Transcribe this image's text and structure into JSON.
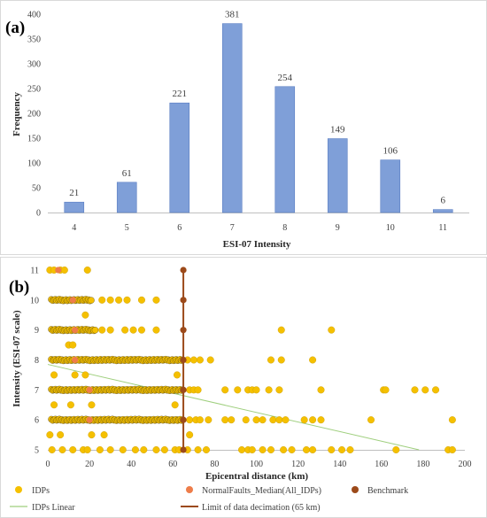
{
  "chart_data": [
    {
      "panel_label": "(a)",
      "type": "bar",
      "categories": [
        "4",
        "5",
        "6",
        "7",
        "8",
        "9",
        "10",
        "11"
      ],
      "values": [
        21,
        61,
        221,
        381,
        254,
        149,
        106,
        6
      ],
      "xlabel": "ESI-07 Intensity",
      "ylabel": "Frequency",
      "ylim": [
        0,
        400
      ],
      "yticks": [
        0,
        50,
        100,
        150,
        200,
        250,
        300,
        350,
        400
      ],
      "grid": false,
      "bar_color": "#7f9fd8",
      "data_labels": true
    },
    {
      "panel_label": "(b)",
      "type": "scatter",
      "xlabel": "Epicentral distance (km)",
      "ylabel": "Intensity  (ESI-07 scale)",
      "xlim": [
        0,
        200
      ],
      "ylim": [
        5,
        11
      ],
      "xticks": [
        0,
        20,
        40,
        60,
        80,
        100,
        120,
        140,
        160,
        180,
        200
      ],
      "yticks": [
        5,
        6,
        7,
        8,
        9,
        10,
        11
      ],
      "grid": false,
      "legend_position": "bottom",
      "series": [
        {
          "name": "IDPs",
          "marker": "circle",
          "color": "#f5c000",
          "dense_bands": [
            {
              "y": 6,
              "x_range": [
                0,
                66
              ]
            },
            {
              "y": 7,
              "x_range": [
                0,
                66
              ]
            },
            {
              "y": 8,
              "x_range": [
                0,
                66
              ]
            },
            {
              "y": 9,
              "x_range": [
                0,
                24
              ]
            },
            {
              "y": 10,
              "x_range": [
                0,
                22
              ]
            }
          ],
          "points": [
            [
              93,
              5
            ],
            [
              96,
              5
            ],
            [
              98,
              5
            ],
            [
              103,
              5
            ],
            [
              107,
              5
            ],
            [
              113,
              5
            ],
            [
              117,
              5
            ],
            [
              124,
              5
            ],
            [
              127,
              5
            ],
            [
              136,
              5
            ],
            [
              141,
              5
            ],
            [
              145,
              5
            ],
            [
              167,
              5
            ],
            [
              192,
              5
            ],
            [
              194,
              5
            ],
            [
              2,
              5
            ],
            [
              7,
              5
            ],
            [
              12,
              5
            ],
            [
              17,
              5
            ],
            [
              19,
              5
            ],
            [
              25,
              5
            ],
            [
              30,
              5
            ],
            [
              36,
              5
            ],
            [
              42,
              5
            ],
            [
              46,
              5
            ],
            [
              52,
              5
            ],
            [
              56,
              5
            ],
            [
              61,
              5
            ],
            [
              63,
              5
            ],
            [
              67,
              5
            ],
            [
              72,
              5
            ],
            [
              76,
              5
            ],
            [
              1,
              5.5
            ],
            [
              6,
              5.5
            ],
            [
              21,
              5.5
            ],
            [
              27,
              5.5
            ],
            [
              68,
              5.5
            ],
            [
              68,
              6
            ],
            [
              71,
              6
            ],
            [
              73,
              6
            ],
            [
              77,
              6
            ],
            [
              85,
              6
            ],
            [
              88,
              6
            ],
            [
              95,
              6
            ],
            [
              100,
              6
            ],
            [
              103,
              6
            ],
            [
              108,
              6
            ],
            [
              111,
              6
            ],
            [
              114,
              6
            ],
            [
              123,
              6
            ],
            [
              127,
              6
            ],
            [
              131,
              6
            ],
            [
              155,
              6
            ],
            [
              194,
              6
            ],
            [
              3,
              6.5
            ],
            [
              11,
              6.5
            ],
            [
              21,
              6.5
            ],
            [
              61,
              6.5
            ],
            [
              68,
              7
            ],
            [
              70,
              7
            ],
            [
              72,
              7
            ],
            [
              85,
              7
            ],
            [
              91,
              7
            ],
            [
              96,
              7
            ],
            [
              98,
              7
            ],
            [
              100,
              7
            ],
            [
              106,
              7
            ],
            [
              111,
              7
            ],
            [
              131,
              7
            ],
            [
              161,
              7
            ],
            [
              162,
              7
            ],
            [
              176,
              7
            ],
            [
              181,
              7
            ],
            [
              186,
              7
            ],
            [
              3,
              7.5
            ],
            [
              13,
              7.5
            ],
            [
              18,
              7.5
            ],
            [
              62,
              7.5
            ],
            [
              67,
              8
            ],
            [
              70,
              8
            ],
            [
              73,
              8
            ],
            [
              78,
              8
            ],
            [
              107,
              8
            ],
            [
              112,
              8
            ],
            [
              127,
              8
            ],
            [
              10,
              8.5
            ],
            [
              12,
              8.5
            ],
            [
              26,
              9
            ],
            [
              30,
              9
            ],
            [
              37,
              9
            ],
            [
              41,
              9
            ],
            [
              45,
              9
            ],
            [
              52,
              9
            ],
            [
              112,
              9
            ],
            [
              136,
              9
            ],
            [
              18,
              9.5
            ],
            [
              26,
              10
            ],
            [
              30,
              10
            ],
            [
              34,
              10
            ],
            [
              38,
              10
            ],
            [
              45,
              10
            ],
            [
              52,
              10
            ],
            [
              1,
              11
            ],
            [
              3,
              11
            ],
            [
              6,
              11
            ],
            [
              8,
              11
            ],
            [
              19,
              11
            ]
          ]
        },
        {
          "name": "NormalFaults_Median(All_IDPs)",
          "marker": "circle",
          "color": "#ee7d4a",
          "points": [
            [
              5,
              11
            ],
            [
              12,
              10
            ],
            [
              13,
              9
            ],
            [
              13,
              8
            ],
            [
              20,
              7
            ],
            [
              20,
              6
            ]
          ]
        },
        {
          "name": "Benchmark",
          "marker": "circle",
          "color": "#9c4a1a",
          "points": [
            [
              65,
              5
            ],
            [
              65,
              6
            ],
            [
              65,
              7
            ],
            [
              65,
              8
            ],
            [
              65,
              9
            ],
            [
              65,
              10
            ],
            [
              65,
              11
            ]
          ]
        },
        {
          "name": "IDPs Linear",
          "type": "line",
          "color": "#9fcf7e",
          "points": [
            [
              0,
              7.85
            ],
            [
              178,
              5
            ]
          ]
        },
        {
          "name": "Limit of data decimation (65 km)",
          "type": "line",
          "color": "#9c4a1a",
          "points": [
            [
              65,
              5
            ],
            [
              65,
              11
            ]
          ]
        }
      ]
    }
  ]
}
